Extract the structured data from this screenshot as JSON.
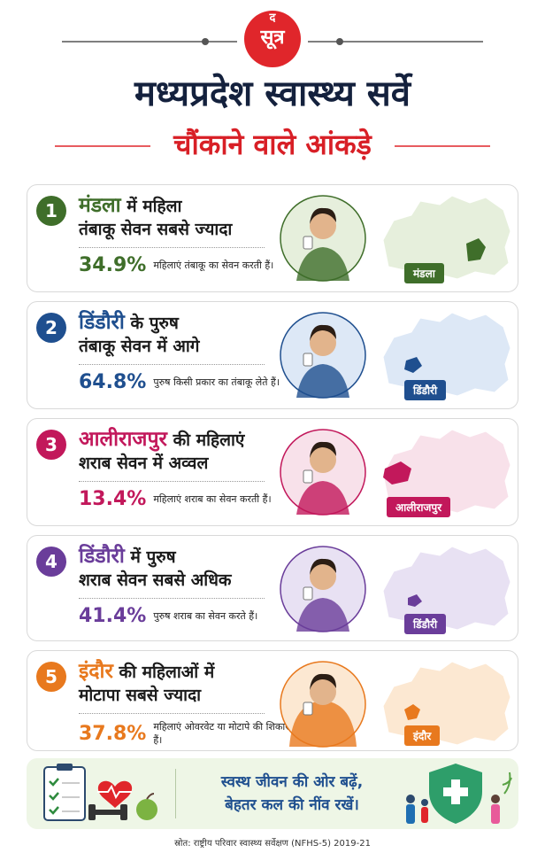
{
  "header": {
    "logo_top": "द",
    "logo_main": "सूत्र",
    "title": "मध्यप्रदेश स्वास्थ्य सर्वे",
    "subtitle": "चौंकाने वाले आंकड़े"
  },
  "cards": [
    {
      "number": "1",
      "place": "मंडला",
      "heading_rest": "में महिला",
      "line2": "तंबाकू सेवन सबसे ज्यादा",
      "stat": "34.9%",
      "stat_text": "महिलाएं तंबाकू का सेवन करती हैं।",
      "map_label": "मंडला",
      "color": "#3f6e2a"
    },
    {
      "number": "2",
      "place": "डिंडौरी",
      "heading_rest": "के पुरुष",
      "line2": "तंबाकू सेवन में आगे",
      "stat": "64.8%",
      "stat_text": "पुरुष किसी प्रकार का तंबाकू लेते हैं।",
      "map_label": "डिंडौरी",
      "color": "#1f4f8f"
    },
    {
      "number": "3",
      "place": "आलीराजपुर",
      "heading_rest": "की महिलाएं",
      "line2": "शराब सेवन में अव्वल",
      "stat": "13.4%",
      "stat_text": "महिलाएं शराब का सेवन करती हैं।",
      "map_label": "आलीराजपुर",
      "color": "#c2185b"
    },
    {
      "number": "4",
      "place": "डिंडौरी",
      "heading_rest": "में पुरुष",
      "line2": "शराब सेवन सबसे अधिक",
      "stat": "41.4%",
      "stat_text": "पुरुष शराब का सेवन करते हैं।",
      "map_label": "डिंडौरी",
      "color": "#6a3d9a"
    },
    {
      "number": "5",
      "place": "इंदौर",
      "heading_rest": "की महिलाओं में",
      "line2": "मोटापा सबसे ज्यादा",
      "stat": "37.8%",
      "stat_text": "महिलाएं ओवरवेट या मोटापे की शिकार हैं।",
      "map_label": "इंदौर",
      "color": "#e8791e"
    }
  ],
  "footer": {
    "slogan_1": "स्वस्थ जीवन की ओर बढ़ें,",
    "slogan_2": "बेहतर कल की नींव रखें।",
    "source": "स्रोत: राष्ट्रीय परिवार स्वास्थ्य सर्वेक्षण (NFHS-5) 2019-21"
  }
}
